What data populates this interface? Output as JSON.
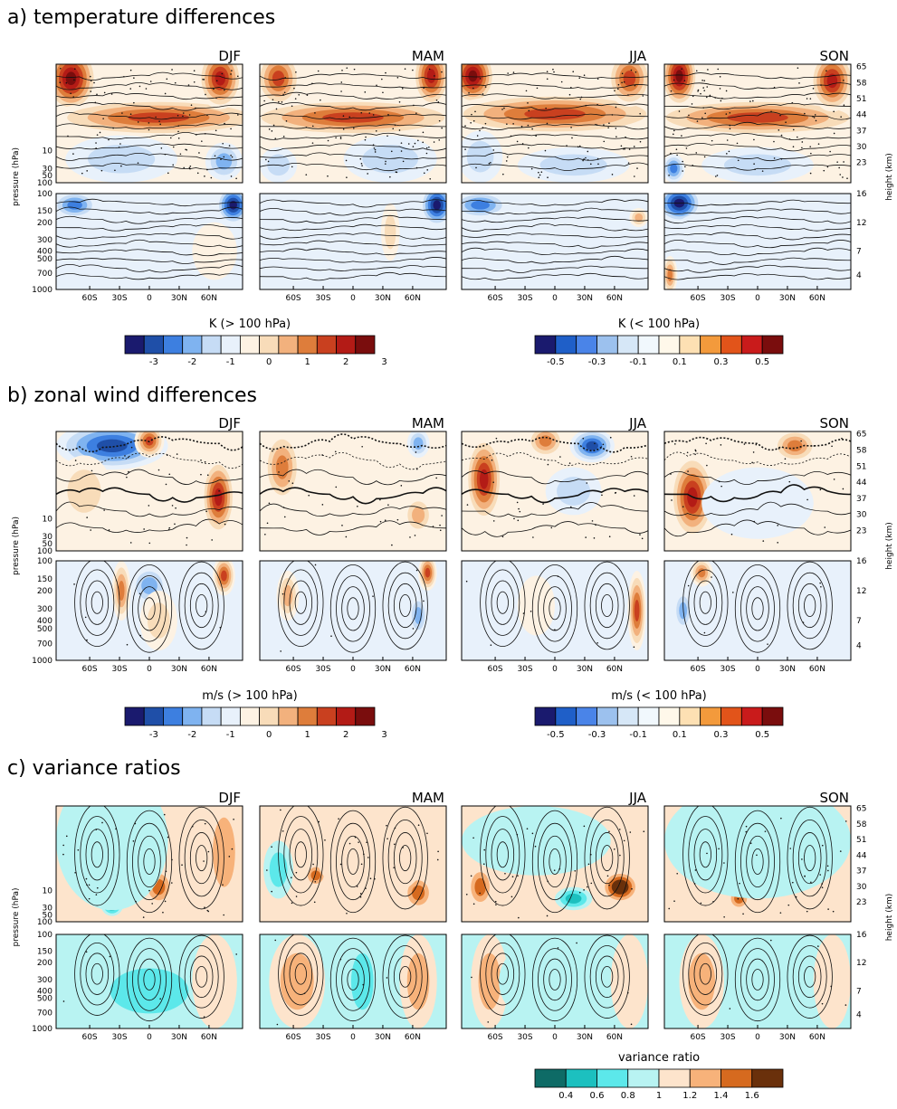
{
  "figure": {
    "sections": [
      {
        "id": "a",
        "title": "a) temperature differences",
        "colorbars": [
          {
            "title": "K (> 100 hPa)",
            "tick_labels": [
              "-3",
              "-2",
              "-1",
              "0",
              "1",
              "2",
              "3"
            ],
            "colors": [
              "#1a1a6e",
              "#1f4fa8",
              "#3d7fe0",
              "#7fb3f0",
              "#c6dcf5",
              "#e8f1fb",
              "#fdf2e3",
              "#f8dcb9",
              "#f2b17d",
              "#de7d3b",
              "#c9401f",
              "#b31b16",
              "#7a0d0d"
            ]
          },
          {
            "title": "K (< 100 hPa)",
            "tick_labels": [
              "-0.5",
              "-0.3",
              "-0.1",
              "0.1",
              "0.3",
              "0.5"
            ],
            "colors": [
              "#1a1a6e",
              "#1f5fc8",
              "#4a84e8",
              "#9cc1ee",
              "#d6e7f7",
              "#f1f8fd",
              "#fff8ea",
              "#fde0b3",
              "#f39a3c",
              "#e2541a",
              "#c91b1b",
              "#7a0d0d"
            ]
          }
        ]
      },
      {
        "id": "b",
        "title": "b) zonal wind differences",
        "colorbars": [
          {
            "title": "m/s (> 100 hPa)",
            "tick_labels": [
              "-3",
              "-2",
              "-1",
              "0",
              "1",
              "2",
              "3"
            ],
            "colors": [
              "#1a1a6e",
              "#1f4fa8",
              "#3d7fe0",
              "#7fb3f0",
              "#c6dcf5",
              "#e8f1fb",
              "#fdf2e3",
              "#f8dcb9",
              "#f2b17d",
              "#de7d3b",
              "#c9401f",
              "#b31b16",
              "#7a0d0d"
            ]
          },
          {
            "title": "m/s (< 100 hPa)",
            "tick_labels": [
              "-0.5",
              "-0.3",
              "-0.1",
              "0.1",
              "0.3",
              "0.5"
            ],
            "colors": [
              "#1a1a6e",
              "#1f5fc8",
              "#4a84e8",
              "#9cc1ee",
              "#d6e7f7",
              "#f1f8fd",
              "#fff8ea",
              "#fde0b3",
              "#f39a3c",
              "#e2541a",
              "#c91b1b",
              "#7a0d0d"
            ]
          }
        ]
      },
      {
        "id": "c",
        "title": "c) variance ratios",
        "colorbars": [
          {
            "title": "variance ratio",
            "tick_labels": [
              "0.4",
              "0.6",
              "0.8",
              "1",
              "1.2",
              "1.4",
              "1.6"
            ],
            "colors": [
              "#0e6b66",
              "#1cc0bf",
              "#5ce8ea",
              "#b8f3f2",
              "#fde4cc",
              "#f7b27a",
              "#d66a1f",
              "#6a300b"
            ]
          }
        ]
      }
    ],
    "seasons": [
      "DJF",
      "MAM",
      "JJA",
      "SON"
    ],
    "y_axis_label": "pressure (hPa)",
    "right_axis_label": "height (km)",
    "pressure_ticks_upper": [
      "10",
      "30",
      "50",
      "100"
    ],
    "pressure_ticks_lower": [
      "100",
      "150",
      "200",
      "300",
      "400",
      "500",
      "700",
      "1000"
    ],
    "height_ticks_upper": [
      "65",
      "58",
      "51",
      "44",
      "37",
      "30",
      "23"
    ],
    "height_ticks_lower": [
      "16",
      "12",
      "7",
      "4"
    ],
    "lat_ticks": [
      "60S",
      "30S",
      "0",
      "30N",
      "60N"
    ]
  },
  "chart_data": [
    {
      "type": "heatmap",
      "panel": "a",
      "title": "a) temperature differences",
      "columns": [
        "DJF",
        "MAM",
        "JJA",
        "SON"
      ],
      "xlabel": "",
      "ylabel": "pressure (hPa)",
      "y2label": "height (km)",
      "x_ticks": [
        "60S",
        "30S",
        "0",
        "30N",
        "60N"
      ],
      "upper_colorbar": {
        "label": "K (> 100 hPa)",
        "ticks": [
          -3,
          -2,
          -1,
          0,
          1,
          2,
          3
        ]
      },
      "lower_colorbar": {
        "label": "K (< 100 hPa)",
        "ticks": [
          -0.5,
          -0.3,
          -0.1,
          0.1,
          0.3,
          0.5
        ]
      }
    },
    {
      "type": "heatmap",
      "panel": "b",
      "title": "b) zonal wind differences",
      "columns": [
        "DJF",
        "MAM",
        "JJA",
        "SON"
      ],
      "xlabel": "",
      "ylabel": "pressure (hPa)",
      "y2label": "height (km)",
      "x_ticks": [
        "60S",
        "30S",
        "0",
        "30N",
        "60N"
      ],
      "upper_colorbar": {
        "label": "m/s (> 100 hPa)",
        "ticks": [
          -3,
          -2,
          -1,
          0,
          1,
          2,
          3
        ]
      },
      "lower_colorbar": {
        "label": "m/s (< 100 hPa)",
        "ticks": [
          -0.5,
          -0.3,
          -0.1,
          0.1,
          0.3,
          0.5
        ]
      }
    },
    {
      "type": "heatmap",
      "panel": "c",
      "title": "c) variance ratios",
      "columns": [
        "DJF",
        "MAM",
        "JJA",
        "SON"
      ],
      "xlabel": "",
      "ylabel": "pressure (hPa)",
      "y2label": "height (km)",
      "x_ticks": [
        "60S",
        "30S",
        "0",
        "30N",
        "60N"
      ],
      "colorbar": {
        "label": "variance ratio",
        "ticks": [
          0.4,
          0.6,
          0.8,
          1,
          1.2,
          1.4,
          1.6
        ]
      }
    }
  ]
}
